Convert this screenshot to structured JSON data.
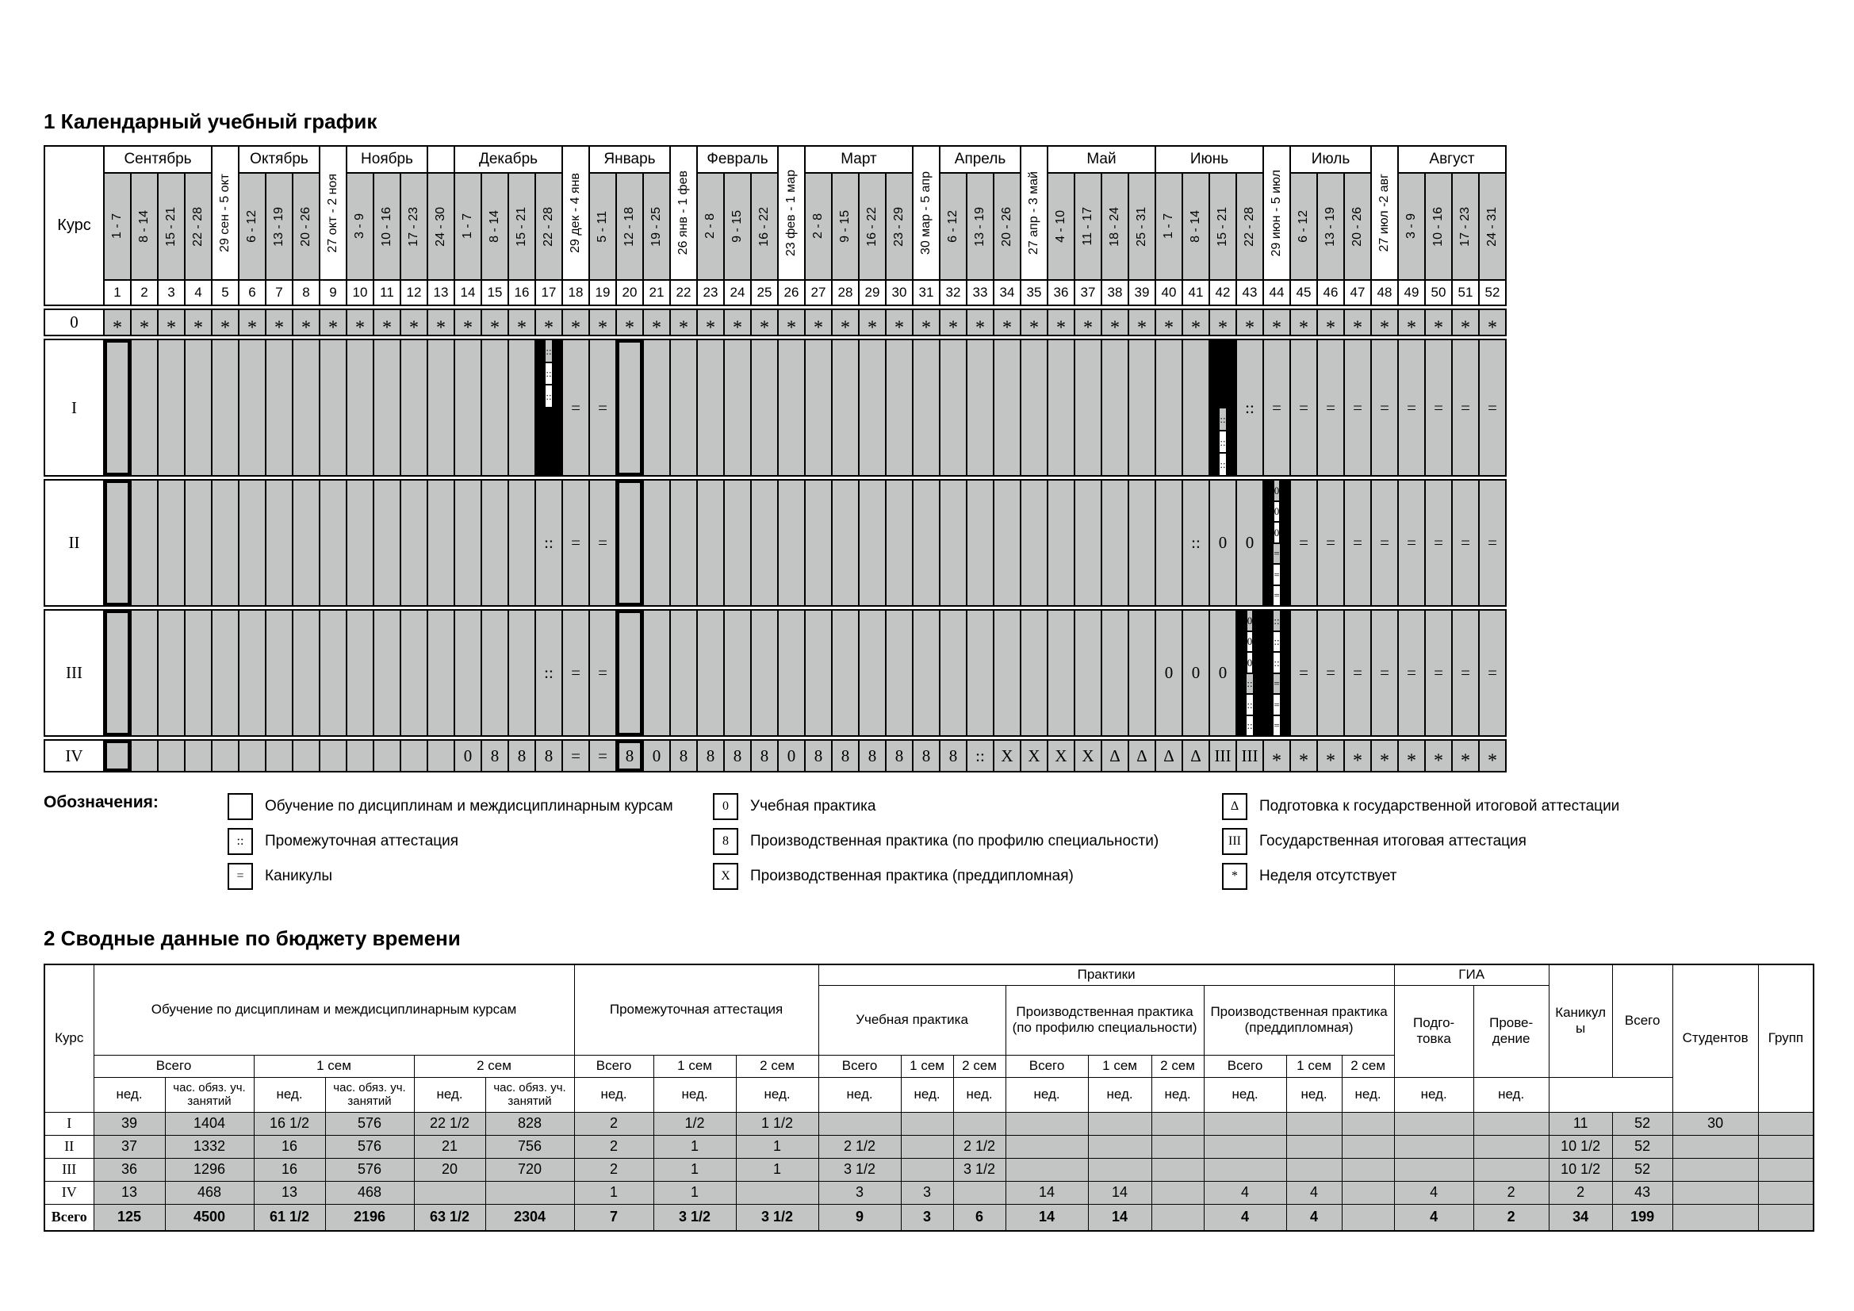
{
  "calendar": {
    "title": "1 Календарный учебный график",
    "course_label": "Курс",
    "months": [
      {
        "label": "Сентябрь",
        "start": 1,
        "span": 4
      },
      {
        "label": "Октябрь",
        "start": 6,
        "span": 3
      },
      {
        "label": "Ноябрь",
        "start": 10,
        "span": 3
      },
      {
        "label": "",
        "start": 13,
        "span": 1
      },
      {
        "label": "Декабрь",
        "start": 14,
        "span": 4
      },
      {
        "label": "Январь",
        "start": 19,
        "span": 3
      },
      {
        "label": "Февраль",
        "start": 23,
        "span": 3
      },
      {
        "label": "Март",
        "start": 27,
        "span": 4
      },
      {
        "label": "Апрель",
        "start": 32,
        "span": 3
      },
      {
        "label": "Май",
        "start": 36,
        "span": 4
      },
      {
        "label": "Июнь",
        "start": 40,
        "span": 4
      },
      {
        "label": "Июль",
        "start": 45,
        "span": 3
      },
      {
        "label": "Август",
        "start": 49,
        "span": 4
      }
    ],
    "weeks": [
      {
        "n": 1,
        "label": "1 - 7"
      },
      {
        "n": 2,
        "label": "8 - 14"
      },
      {
        "n": 3,
        "label": "15 - 21"
      },
      {
        "n": 4,
        "label": "22 - 28"
      },
      {
        "n": 5,
        "label": "29 сен - 5 окт",
        "cross": true
      },
      {
        "n": 6,
        "label": "6 - 12"
      },
      {
        "n": 7,
        "label": "13 - 19"
      },
      {
        "n": 8,
        "label": "20 - 26"
      },
      {
        "n": 9,
        "label": "27 окт - 2 ноя",
        "cross": true
      },
      {
        "n": 10,
        "label": "3 - 9"
      },
      {
        "n": 11,
        "label": "10 - 16"
      },
      {
        "n": 12,
        "label": "17 - 23"
      },
      {
        "n": 13,
        "label": "24 - 30"
      },
      {
        "n": 14,
        "label": "1 - 7"
      },
      {
        "n": 15,
        "label": "8 - 14"
      },
      {
        "n": 16,
        "label": "15 - 21"
      },
      {
        "n": 17,
        "label": "22 - 28"
      },
      {
        "n": 18,
        "label": "29 дек - 4 янв",
        "cross": true
      },
      {
        "n": 19,
        "label": "5 - 11"
      },
      {
        "n": 20,
        "label": "12 - 18"
      },
      {
        "n": 21,
        "label": "19 - 25"
      },
      {
        "n": 22,
        "label": "26 янв - 1 фев",
        "cross": true
      },
      {
        "n": 23,
        "label": "2 - 8"
      },
      {
        "n": 24,
        "label": "9 - 15"
      },
      {
        "n": 25,
        "label": "16 - 22"
      },
      {
        "n": 26,
        "label": "23 фев - 1 мар",
        "cross": true
      },
      {
        "n": 27,
        "label": "2 - 8"
      },
      {
        "n": 28,
        "label": "9 - 15"
      },
      {
        "n": 29,
        "label": "16 - 22"
      },
      {
        "n": 30,
        "label": "23 - 29"
      },
      {
        "n": 31,
        "label": "30 мар - 5 апр",
        "cross": true
      },
      {
        "n": 32,
        "label": "6 - 12"
      },
      {
        "n": 33,
        "label": "13 - 19"
      },
      {
        "n": 34,
        "label": "20 - 26"
      },
      {
        "n": 35,
        "label": "27 апр - 3 май",
        "cross": true
      },
      {
        "n": 36,
        "label": "4 - 10"
      },
      {
        "n": 37,
        "label": "11 - 17"
      },
      {
        "n": 38,
        "label": "18 - 24"
      },
      {
        "n": 39,
        "label": "25 - 31"
      },
      {
        "n": 40,
        "label": "1 - 7"
      },
      {
        "n": 41,
        "label": "8 - 14"
      },
      {
        "n": 42,
        "label": "15 - 21"
      },
      {
        "n": 43,
        "label": "22 - 28"
      },
      {
        "n": 44,
        "label": "29 июн - 5 июл",
        "cross": true
      },
      {
        "n": 45,
        "label": "6 - 12"
      },
      {
        "n": 46,
        "label": "13 - 19"
      },
      {
        "n": 47,
        "label": "20 - 26"
      },
      {
        "n": 48,
        "label": "27 июл -2 авг",
        "cross": true
      },
      {
        "n": 49,
        "label": "3 - 9"
      },
      {
        "n": 50,
        "label": "10 - 16"
      },
      {
        "n": 51,
        "label": "17 - 23"
      },
      {
        "n": 52,
        "label": "24 - 31"
      }
    ],
    "rows": [
      {
        "label": "0",
        "h": 31,
        "cells": [
          "*",
          "*",
          "*",
          "*",
          "*",
          "*",
          "*",
          "*",
          "*",
          "*",
          "*",
          "*",
          "*",
          "*",
          "*",
          "*",
          "*",
          "*",
          "*",
          "*",
          "*",
          "*",
          "*",
          "*",
          "*",
          "*",
          "*",
          "*",
          "*",
          "*",
          "*",
          "*",
          "*",
          "*",
          "*",
          "*",
          "*",
          "*",
          "*",
          "*",
          "*",
          "*",
          "*",
          "*",
          "*",
          "*",
          "*",
          "*",
          "*",
          "*",
          "*",
          "*"
        ]
      },
      {
        "label": "I",
        "h": 170,
        "cells": [
          "!",
          "",
          "",
          "",
          "",
          "",
          "",
          "",
          "",
          "",
          "",
          "",
          "",
          "",
          "",
          "",
          {
            "sub": [
              "::",
              "::",
              "::",
              "",
              "",
              ""
            ]
          },
          "=",
          "=",
          "!",
          "",
          "",
          "",
          "",
          "",
          "",
          "",
          "",
          "",
          "",
          "",
          "",
          "",
          "",
          "",
          "",
          "",
          "",
          "",
          "",
          "",
          {
            "sub": [
              "",
              "",
              "",
              "::",
              "::",
              "::"
            ]
          },
          "::",
          "=",
          "=",
          "=",
          "=",
          "=",
          "=",
          "=",
          "=",
          "="
        ]
      },
      {
        "label": "II",
        "h": 157,
        "cells": [
          "!",
          "",
          "",
          "",
          "",
          "",
          "",
          "",
          "",
          "",
          "",
          "",
          "",
          "",
          "",
          "",
          "::",
          "=",
          "=",
          "!",
          "",
          "",
          "",
          "",
          "",
          "",
          "",
          "",
          "",
          "",
          "",
          "",
          "",
          "",
          "",
          "",
          "",
          "",
          "",
          "",
          "::",
          "0",
          "0",
          {
            "sub": [
              "0",
              "0",
              "0",
              "=",
              "=",
              "="
            ]
          },
          "=",
          "=",
          "=",
          "=",
          "=",
          "=",
          "=",
          "="
        ]
      },
      {
        "label": "III",
        "h": 157,
        "cells": [
          "!",
          "",
          "",
          "",
          "",
          "",
          "",
          "",
          "",
          "",
          "",
          "",
          "",
          "",
          "",
          "",
          "::",
          "=",
          "=",
          "!",
          "",
          "",
          "",
          "",
          "",
          "",
          "",
          "",
          "",
          "",
          "",
          "",
          "",
          "",
          "",
          "",
          "",
          "",
          "",
          "0",
          "0",
          "0",
          {
            "sub": [
              "0",
              "0",
              "0",
              "::",
              "::",
              "::"
            ]
          },
          {
            "sub": [
              "::",
              "::",
              "::",
              "=",
              "=",
              "="
            ]
          },
          "=",
          "=",
          "=",
          "=",
          "=",
          "=",
          "=",
          "="
        ]
      },
      {
        "label": "IV",
        "h": 38,
        "cells": [
          "!",
          "",
          "",
          "",
          "",
          "",
          "",
          "",
          "",
          "",
          "",
          "",
          "",
          "0",
          "8",
          "8",
          "8",
          "=",
          "=",
          "!8",
          "0",
          "8",
          "8",
          "8",
          "8",
          "0",
          "8",
          "8",
          "8",
          "8",
          "8",
          "8",
          "::",
          "X",
          "X",
          "X",
          "X",
          "Δ",
          "Δ",
          "Δ",
          "Δ",
          "III",
          "III",
          "*",
          "*",
          "*",
          "*",
          "*",
          "*",
          "*",
          "*",
          "*"
        ]
      }
    ]
  },
  "legend": {
    "label": "Обозначения:",
    "columns": [
      [
        {
          "sym": "",
          "text": "Обучение по дисциплинам и междисциплинарным курсам"
        },
        {
          "sym": "::",
          "text": "Промежуточная аттестация"
        },
        {
          "sym": "=",
          "text": "Каникулы"
        }
      ],
      [
        {
          "sym": "0",
          "text": "Учебная практика"
        },
        {
          "sym": "8",
          "text": "Производственная практика (по профилю специальности)"
        },
        {
          "sym": "X",
          "text": "Производственная практика (преддипломная)"
        }
      ],
      [
        {
          "sym": "Δ",
          "text": "Подготовка к государственной итоговой аттестации"
        },
        {
          "sym": "III",
          "text": "Государственная итоговая аттестация"
        },
        {
          "sym": "*",
          "text": "Неделя отсутствует"
        }
      ]
    ]
  },
  "summary": {
    "title": "2 Сводные данные по бюджету времени",
    "header": {
      "kurs": "Курс",
      "obuchenie": "Обучение по дисциплинам и междисциплинарным курсам",
      "prom": "Промежуточная аттестация",
      "praktiki": "Практики",
      "uchebnaya": "Учебная практика",
      "proizv_profil": "Производственная практика (по профилю специальности)",
      "proizv_preddipl": "Производственная практика (преддипломная)",
      "gia": "ГИА",
      "podgotovka": "Подго-товка",
      "provedenie": "Прове-дение",
      "kanikuly": "Каникулы",
      "vsego": "Всего",
      "sem1": "1 сем",
      "sem2": "2 сем",
      "ned": "нед.",
      "chas": "час. обяз. уч. занятий",
      "studentov": "Студентов",
      "grupp": "Групп"
    },
    "rows": [
      [
        "I",
        "39",
        "1404",
        "16 1/2",
        "576",
        "22 1/2",
        "828",
        "2",
        "1/2",
        "1 1/2",
        "",
        "",
        "",
        "",
        "",
        "",
        "",
        "",
        "",
        "",
        "",
        "11",
        "52",
        "30",
        ""
      ],
      [
        "II",
        "37",
        "1332",
        "16",
        "576",
        "21",
        "756",
        "2",
        "1",
        "1",
        "2 1/2",
        "",
        "2 1/2",
        "",
        "",
        "",
        "",
        "",
        "",
        "",
        "",
        "10 1/2",
        "52",
        "",
        ""
      ],
      [
        "III",
        "36",
        "1296",
        "16",
        "576",
        "20",
        "720",
        "2",
        "1",
        "1",
        "3 1/2",
        "",
        "3 1/2",
        "",
        "",
        "",
        "",
        "",
        "",
        "",
        "",
        "10 1/2",
        "52",
        "",
        ""
      ],
      [
        "IV",
        "13",
        "468",
        "13",
        "468",
        "",
        "",
        "1",
        "1",
        "",
        "3",
        "3",
        "",
        "14",
        "14",
        "",
        "4",
        "4",
        "",
        "4",
        "2",
        "2",
        "43",
        "",
        ""
      ],
      [
        "Всего",
        "125",
        "4500",
        "61 1/2",
        "2196",
        "63 1/2",
        "2304",
        "7",
        "3 1/2",
        "3 1/2",
        "9",
        "3",
        "6",
        "14",
        "14",
        "",
        "4",
        "4",
        "",
        "4",
        "2",
        "34",
        "199",
        "",
        ""
      ]
    ]
  }
}
